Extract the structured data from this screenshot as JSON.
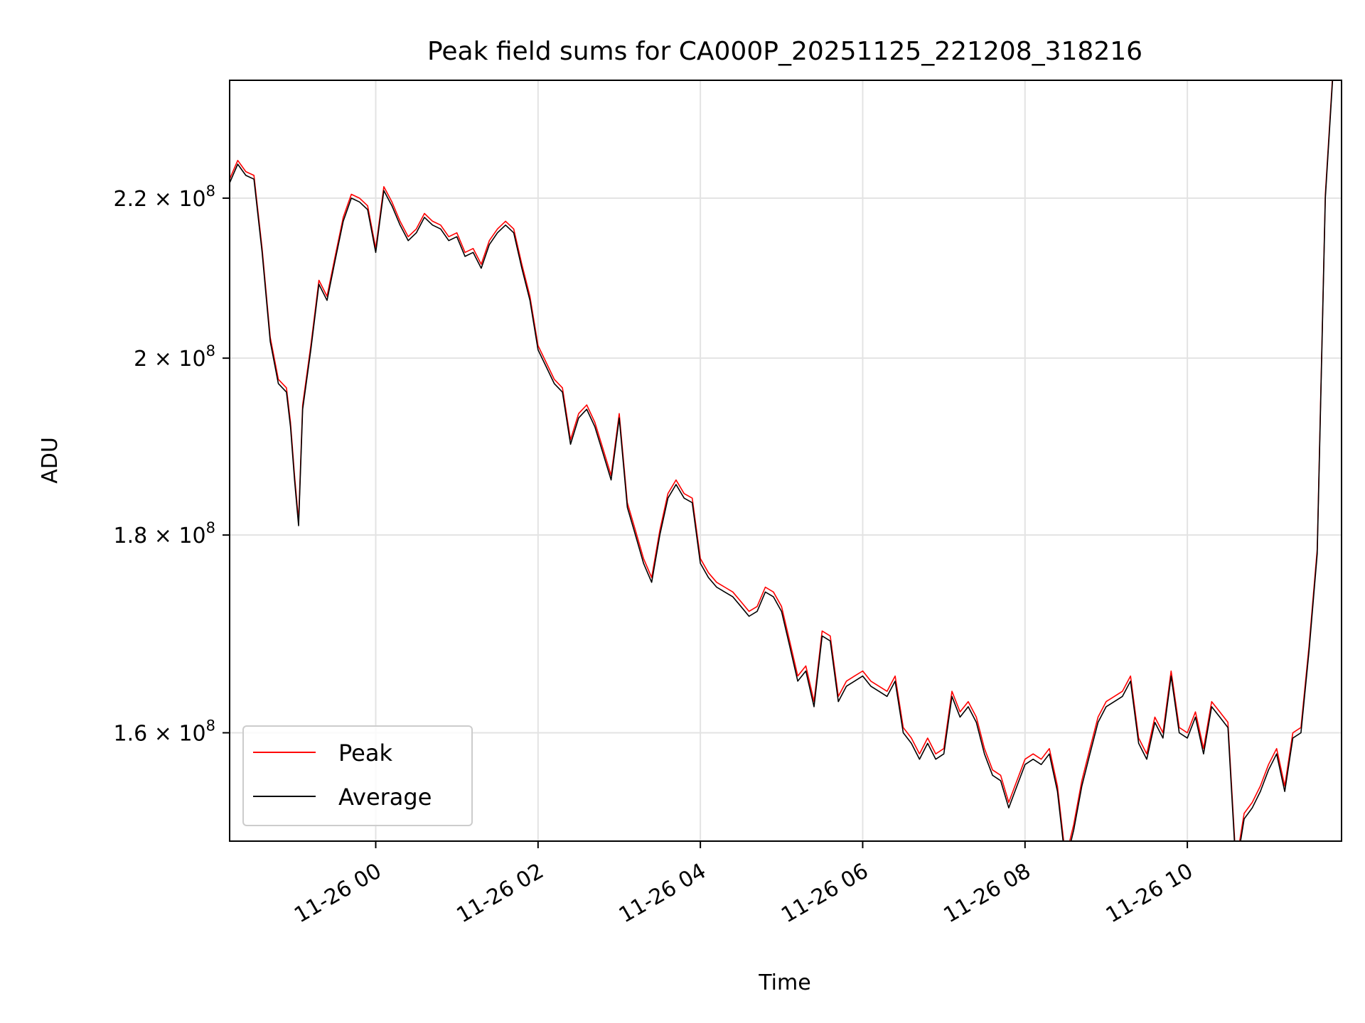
{
  "chart_data": {
    "type": "line",
    "title": "Peak field sums for CA000P_20251125_221208_318216",
    "xlabel": "Time",
    "ylabel": "ADU",
    "yscale": "log",
    "ylim": [
      150000000,
      236000000
    ],
    "xlim_hours": [
      -1.8,
      11.9
    ],
    "x_unit": "hours relative to 2025-11-26 00:00",
    "grid": true,
    "legend_location": "lower-left",
    "x_ticks": [
      {
        "value": 0,
        "label": "11-26 00"
      },
      {
        "value": 2,
        "label": "11-26 02"
      },
      {
        "value": 4,
        "label": "11-26 04"
      },
      {
        "value": 6,
        "label": "11-26 06"
      },
      {
        "value": 8,
        "label": "11-26 08"
      },
      {
        "value": 10,
        "label": "11-26 10"
      }
    ],
    "y_ticks": [
      {
        "value": 160000000,
        "label_mantissa": "1.6",
        "label_base": "10",
        "label_exp": "8"
      },
      {
        "value": 180000000,
        "label_mantissa": "1.8",
        "label_base": "10",
        "label_exp": "8"
      },
      {
        "value": 200000000,
        "label_mantissa": "2",
        "label_base": "10",
        "label_exp": "8"
      },
      {
        "value": 220000000,
        "label_mantissa": "2.2",
        "label_base": "10",
        "label_exp": "8"
      }
    ],
    "series": [
      {
        "name": "Peak",
        "color": "#ff0000"
      },
      {
        "name": "Average",
        "color": "#000000"
      }
    ],
    "x": [
      -1.8,
      -1.7,
      -1.6,
      -1.5,
      -1.4,
      -1.3,
      -1.2,
      -1.1,
      -1.05,
      -1.0,
      -0.95,
      -0.9,
      -0.8,
      -0.7,
      -0.6,
      -0.5,
      -0.4,
      -0.3,
      -0.2,
      -0.1,
      0.0,
      0.1,
      0.2,
      0.3,
      0.4,
      0.5,
      0.6,
      0.7,
      0.8,
      0.9,
      1.0,
      1.1,
      1.2,
      1.3,
      1.4,
      1.5,
      1.6,
      1.7,
      1.8,
      1.9,
      2.0,
      2.1,
      2.2,
      2.3,
      2.4,
      2.5,
      2.6,
      2.7,
      2.8,
      2.9,
      3.0,
      3.1,
      3.2,
      3.3,
      3.4,
      3.5,
      3.6,
      3.7,
      3.8,
      3.9,
      4.0,
      4.1,
      4.2,
      4.3,
      4.4,
      4.5,
      4.6,
      4.7,
      4.8,
      4.9,
      5.0,
      5.1,
      5.2,
      5.3,
      5.4,
      5.5,
      5.6,
      5.7,
      5.8,
      5.9,
      6.0,
      6.1,
      6.2,
      6.3,
      6.4,
      6.5,
      6.6,
      6.7,
      6.8,
      6.9,
      7.0,
      7.1,
      7.2,
      7.3,
      7.4,
      7.5,
      7.6,
      7.7,
      7.8,
      7.9,
      8.0,
      8.1,
      8.2,
      8.3,
      8.4,
      8.5,
      8.6,
      8.7,
      8.8,
      8.9,
      9.0,
      9.1,
      9.2,
      9.3,
      9.4,
      9.5,
      9.6,
      9.7,
      9.8,
      9.9,
      10.0,
      10.1,
      10.2,
      10.3,
      10.4,
      10.5,
      10.6,
      10.7,
      10.8,
      10.9,
      11.0,
      11.1,
      11.2,
      11.3,
      11.4,
      11.5,
      11.6,
      11.7,
      11.8
    ],
    "average": [
      222000000,
      224500000,
      223000000,
      222500000,
      213000000,
      202000000,
      197000000,
      196000000,
      192000000,
      186000000,
      181000000,
      194000000,
      201000000,
      209000000,
      207000000,
      212000000,
      217000000,
      220000000,
      219500000,
      218500000,
      213000000,
      221000000,
      219000000,
      216500000,
      214500000,
      215500000,
      217500000,
      216500000,
      216000000,
      214500000,
      215000000,
      212500000,
      213000000,
      211000000,
      214000000,
      215500000,
      216500000,
      215500000,
      211000000,
      207000000,
      201000000,
      199000000,
      197000000,
      196000000,
      190000000,
      193000000,
      194000000,
      192000000,
      189000000,
      186000000,
      193000000,
      183000000,
      180000000,
      177000000,
      175000000,
      180000000,
      184000000,
      185500000,
      184000000,
      183500000,
      177000000,
      175500000,
      174500000,
      174000000,
      173500000,
      172500000,
      171500000,
      172000000,
      174000000,
      173500000,
      172000000,
      168500000,
      165000000,
      166000000,
      162500000,
      169500000,
      169000000,
      163000000,
      164500000,
      165000000,
      165500000,
      164500000,
      164000000,
      163500000,
      165000000,
      160000000,
      159000000,
      157500000,
      159000000,
      157500000,
      158000000,
      163500000,
      161500000,
      162500000,
      161000000,
      158000000,
      156000000,
      155500000,
      153000000,
      155000000,
      157000000,
      157500000,
      157000000,
      158000000,
      154500000,
      148000000,
      151000000,
      155000000,
      158000000,
      161000000,
      162500000,
      163000000,
      163500000,
      165000000,
      159000000,
      157500000,
      161000000,
      159500000,
      165500000,
      160000000,
      159500000,
      161500000,
      158000000,
      162500000,
      161500000,
      160500000,
      147500000,
      152000000,
      153000000,
      154500000,
      156500000,
      158000000,
      154500000,
      159500000,
      160000000,
      168000000,
      178000000,
      220000000,
      238000000
    ],
    "peak": [
      222500000,
      225000000,
      223500000,
      223000000,
      213500000,
      202500000,
      197500000,
      196500000,
      192500000,
      186500000,
      181500000,
      194500000,
      201500000,
      209500000,
      207500000,
      212500000,
      217500000,
      220500000,
      220000000,
      219000000,
      213500000,
      221500000,
      219500000,
      217000000,
      215000000,
      216000000,
      218000000,
      217000000,
      216500000,
      215000000,
      215500000,
      213000000,
      213500000,
      211500000,
      214500000,
      216000000,
      217000000,
      216000000,
      211500000,
      207500000,
      201500000,
      199500000,
      197500000,
      196500000,
      190500000,
      193500000,
      194500000,
      192500000,
      189500000,
      186500000,
      193500000,
      183500000,
      180500000,
      177500000,
      175500000,
      180500000,
      184500000,
      186000000,
      184500000,
      184000000,
      177500000,
      176000000,
      175000000,
      174500000,
      174000000,
      173000000,
      172000000,
      172500000,
      174500000,
      174000000,
      172500000,
      169000000,
      165500000,
      166500000,
      163000000,
      170000000,
      169500000,
      163500000,
      165000000,
      165500000,
      166000000,
      165000000,
      164500000,
      164000000,
      165500000,
      160500000,
      159500000,
      158000000,
      159500000,
      158000000,
      158500000,
      164000000,
      162000000,
      163000000,
      161500000,
      158500000,
      156500000,
      156000000,
      153500000,
      155500000,
      157500000,
      158000000,
      157500000,
      158500000,
      155000000,
      148500000,
      151500000,
      155500000,
      158500000,
      161500000,
      163000000,
      163500000,
      164000000,
      165500000,
      159500000,
      158000000,
      161500000,
      160000000,
      166000000,
      160500000,
      160000000,
      162000000,
      158500000,
      163000000,
      162000000,
      161000000,
      148000000,
      152500000,
      153500000,
      155000000,
      157000000,
      158500000,
      155000000,
      160000000,
      160500000,
      168500000,
      178500000,
      220500000,
      238500000
    ]
  }
}
